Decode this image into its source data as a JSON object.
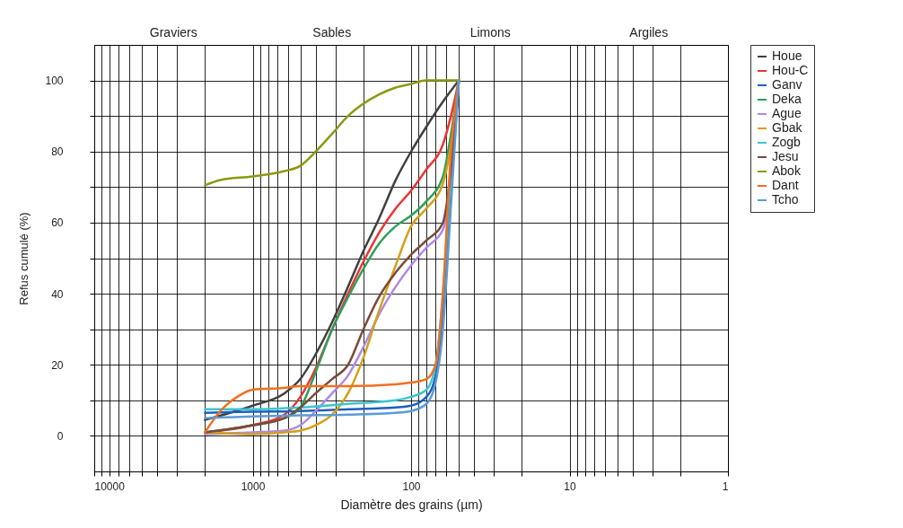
{
  "chart_data": {
    "type": "line",
    "xlabel": "Diamètre des grains (µm)",
    "ylabel": "Refus cumulé (%)",
    "log": "x",
    "grid": true,
    "legend": "right",
    "marker": "none",
    "line_style": "solid",
    "xlim": [
      10000,
      1
    ],
    "xticks": [
      10000,
      {
        "value": 9000,
        "label": null
      },
      {
        "value": 8000,
        "label": null
      },
      {
        "value": 7000,
        "label": null
      },
      {
        "value": 6000,
        "label": null
      },
      {
        "value": 5000,
        "label": null
      },
      {
        "value": 4000,
        "label": null
      },
      {
        "value": 3000,
        "label": null
      },
      {
        "value": 2000,
        "label": null
      },
      1000,
      {
        "value": 900,
        "label": null
      },
      {
        "value": 800,
        "label": null
      },
      {
        "value": 700,
        "label": null
      },
      {
        "value": 600,
        "label": null
      },
      {
        "value": 500,
        "label": null
      },
      {
        "value": 400,
        "label": null
      },
      {
        "value": 300,
        "label": null
      },
      {
        "value": 200,
        "label": null
      },
      100,
      {
        "value": 90,
        "label": null
      },
      {
        "value": 80,
        "label": null
      },
      {
        "value": 70,
        "label": null
      },
      {
        "value": 60,
        "label": null
      },
      {
        "value": 50,
        "label": null
      },
      {
        "value": 40,
        "label": null
      },
      {
        "value": 30,
        "label": null
      },
      {
        "value": 20,
        "label": null
      },
      10,
      {
        "value": 9,
        "label": null
      },
      {
        "value": 8,
        "label": null
      },
      {
        "value": 7,
        "label": null
      },
      {
        "value": 6,
        "label": null
      },
      {
        "value": 5,
        "label": null
      },
      {
        "value": 4,
        "label": null
      },
      {
        "value": 3,
        "label": null
      },
      {
        "value": 2,
        "label": null
      },
      1
    ],
    "ylim": [
      -10,
      110
    ],
    "yticks": [
      0,
      {
        "value": 10,
        "label": null
      },
      20,
      {
        "value": 30,
        "label": null
      },
      40,
      {
        "value": 50,
        "label": null
      },
      60,
      {
        "value": 70,
        "label": null
      },
      80,
      {
        "value": 90,
        "label": null
      },
      100
    ],
    "annotations": [
      "Graviers",
      "Sables",
      "Limons",
      "Argiles"
    ],
    "series": [
      {
        "name": "Houe",
        "color": "#404040",
        "x": [
          2000,
          1000,
          630,
          500,
          400,
          315,
          250,
          200,
          160,
          125,
          100,
          80,
          63,
          50
        ],
        "values": [
          4.5,
          8.5,
          12,
          16,
          23,
          32,
          42,
          52,
          61,
          72,
          80,
          87,
          94,
          100
        ]
      },
      {
        "name": "Hou-C",
        "color": "#ee3333",
        "x": [
          2000,
          1000,
          630,
          500,
          400,
          315,
          250,
          200,
          160,
          125,
          100,
          80,
          63,
          56,
          50
        ],
        "values": [
          1,
          3,
          6,
          11,
          19,
          30,
          40,
          49,
          57,
          64,
          69,
          75,
          82,
          90,
          100
        ]
      },
      {
        "name": "Ganv",
        "color": "#1f5fbf",
        "x": [
          2000,
          1000,
          500,
          250,
          125,
          100,
          80,
          70,
          63,
          56,
          50
        ],
        "values": [
          6.5,
          6.8,
          7,
          7.5,
          8,
          8.5,
          11,
          17,
          35,
          70,
          100
        ]
      },
      {
        "name": "Deka",
        "color": "#2ca05a",
        "x": [
          2000,
          1000,
          630,
          500,
          400,
          315,
          250,
          200,
          160,
          125,
          100,
          80,
          63,
          56,
          50
        ],
        "values": [
          1,
          3,
          5,
          8,
          18,
          30,
          39,
          47,
          54,
          59,
          62,
          66,
          73,
          85,
          100
        ]
      },
      {
        "name": "Ague",
        "color": "#b088e8",
        "x": [
          2000,
          1000,
          630,
          500,
          400,
          315,
          250,
          200,
          160,
          125,
          100,
          80,
          63,
          56,
          50
        ],
        "values": [
          0.5,
          1,
          1.5,
          3,
          7,
          12,
          17,
          25,
          34,
          42,
          48,
          53,
          58,
          72,
          100
        ]
      },
      {
        "name": "Gbak",
        "color": "#d4a017",
        "x": [
          2000,
          1000,
          630,
          500,
          400,
          315,
          250,
          200,
          160,
          125,
          100,
          80,
          63,
          56,
          50
        ],
        "values": [
          1,
          0.5,
          1,
          1.5,
          3,
          6,
          12,
          22,
          35,
          48,
          59,
          64,
          71,
          82,
          100
        ]
      },
      {
        "name": "Zogb",
        "color": "#3ac6d0",
        "x": [
          2000,
          1000,
          500,
          250,
          125,
          100,
          80,
          70,
          63,
          56,
          50
        ],
        "values": [
          7.5,
          7.5,
          8,
          9,
          10,
          11,
          13,
          20,
          40,
          75,
          100
        ]
      },
      {
        "name": "Jesu",
        "color": "#7a4a3a",
        "x": [
          2000,
          1000,
          630,
          500,
          400,
          315,
          250,
          200,
          160,
          125,
          100,
          80,
          63,
          56,
          50
        ],
        "values": [
          1,
          3,
          5,
          8,
          12,
          16,
          20,
          30,
          39,
          46,
          51,
          55,
          60,
          75,
          100
        ]
      },
      {
        "name": "Abok",
        "color": "#8c9a10",
        "x": [
          2000,
          1600,
          1000,
          630,
          500,
          400,
          315,
          250,
          160,
          125,
          100,
          80,
          63,
          50
        ],
        "values": [
          70.5,
          72,
          73,
          74.5,
          76,
          80,
          85,
          90,
          96,
          98,
          99,
          100,
          100,
          100
        ]
      },
      {
        "name": "Dant",
        "color": "#f07020",
        "x": [
          2000,
          1600,
          1250,
          1000,
          630,
          500,
          250,
          125,
          100,
          80,
          70,
          63,
          56,
          50
        ],
        "values": [
          1,
          7,
          11,
          13,
          13.5,
          14,
          14,
          14.5,
          15,
          16,
          20,
          40,
          80,
          100
        ]
      },
      {
        "name": "Tcho",
        "color": "#5b9bd5",
        "x": [
          2000,
          1000,
          500,
          250,
          125,
          100,
          80,
          70,
          63,
          56,
          50
        ],
        "values": [
          5,
          5.5,
          5.8,
          6,
          6.5,
          7,
          9,
          15,
          30,
          65,
          100
        ]
      }
    ]
  }
}
